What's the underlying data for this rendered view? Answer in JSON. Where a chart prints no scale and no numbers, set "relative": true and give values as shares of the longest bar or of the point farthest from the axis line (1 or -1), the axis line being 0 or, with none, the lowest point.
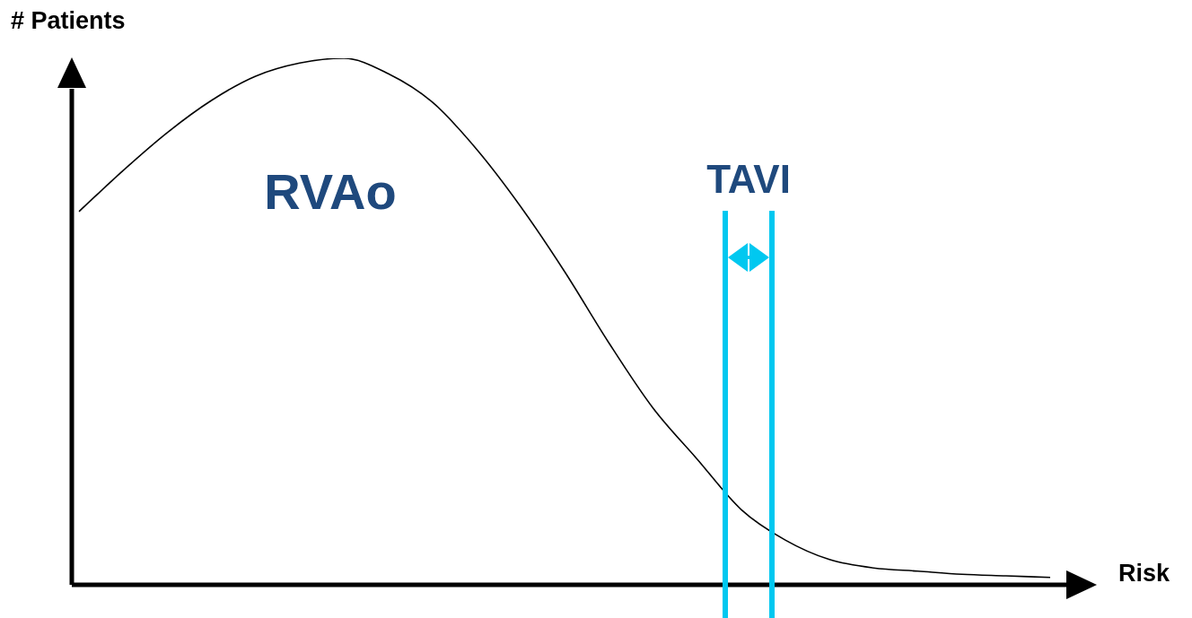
{
  "chart_data": {
    "type": "line",
    "relative": true,
    "xlabel": "Risk",
    "ylabel": "# Patients",
    "categories": [
      null,
      null,
      null,
      null,
      null,
      null,
      null,
      null,
      null,
      null,
      null,
      null,
      null,
      null,
      null,
      null,
      null,
      null,
      null,
      null,
      null,
      null,
      null
    ],
    "series": [
      {
        "color": "#000000",
        "values": [
          0.709,
          0.787,
          0.859,
          0.92,
          0.966,
          0.991,
          1.0,
          0.971,
          0.917,
          0.828,
          0.719,
          0.595,
          0.46,
          0.336,
          0.239,
          0.143,
          0.085,
          0.048,
          0.032,
          0.026,
          0.02,
          0.017,
          0.014
        ]
      }
    ],
    "annotations": [
      "RVAo",
      "TAVI"
    ]
  }
}
